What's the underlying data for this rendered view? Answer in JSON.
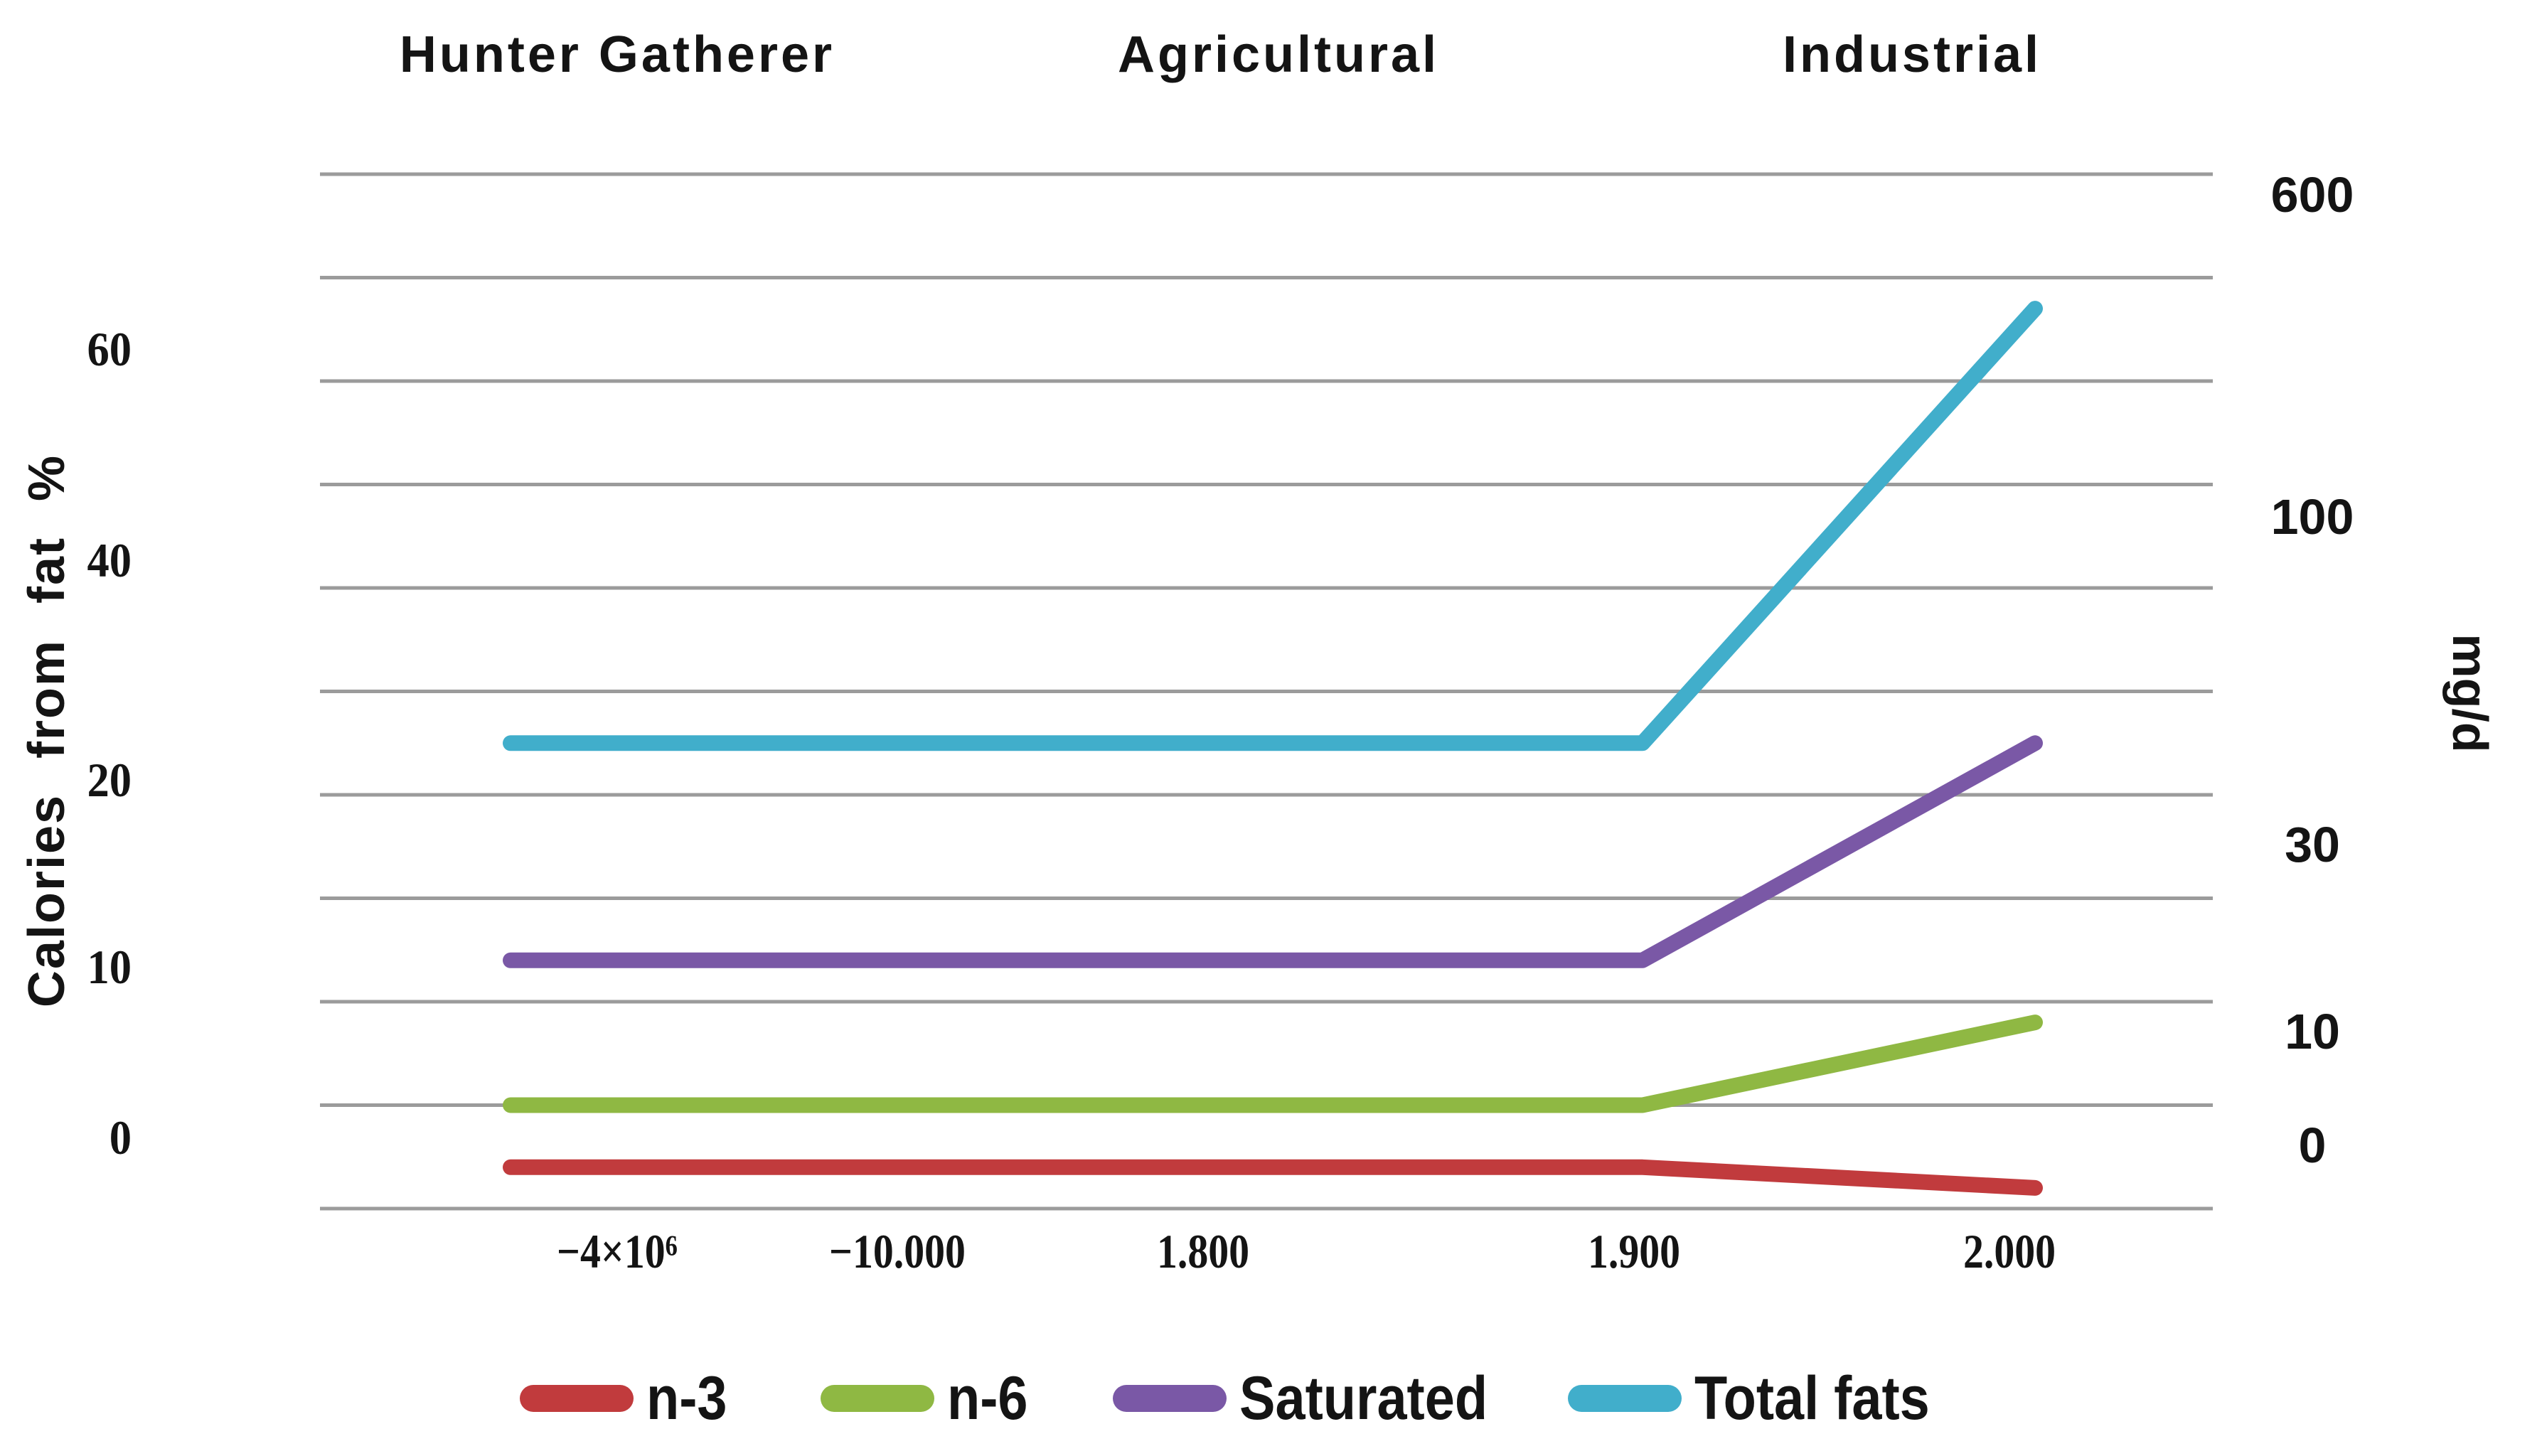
{
  "era_labels": [
    {
      "label": "Hunter Gatherer"
    },
    {
      "label": "Agricultural"
    },
    {
      "label": "Industrial"
    }
  ],
  "left_axis": {
    "title": "Calories from fat %",
    "ticks": [
      "60",
      "40",
      "20",
      "10",
      "0"
    ]
  },
  "right_axis": {
    "title": "mg/d",
    "ticks": [
      "600",
      "100",
      "30",
      "10",
      "0"
    ]
  },
  "x_axis": {
    "ticks": [
      "−4×10⁶",
      "−10.000",
      "1.800",
      "1.900",
      "2.000"
    ]
  },
  "chart_data": {
    "type": "line",
    "title": "",
    "era_bands": [
      "Hunter Gatherer",
      "Agricultural",
      "Industrial"
    ],
    "x_categories": [
      "−4×10⁶",
      "−10.000",
      "1.800",
      "1.900",
      "2.000"
    ],
    "left_axis": {
      "label": "Calories from fat %",
      "ticks": [
        0,
        10,
        20,
        40,
        60
      ]
    },
    "right_axis": {
      "label": "mg/d",
      "ticks": [
        0,
        10,
        30,
        100,
        600
      ]
    },
    "grid": true,
    "gridline_count": 11,
    "legend_position": "bottom",
    "series": [
      {
        "name": "n-3",
        "color": "#c13b3d",
        "values": [
          2,
          2,
          2,
          2,
          1
        ]
      },
      {
        "name": "n-6",
        "color": "#8fb843",
        "values": [
          5,
          5,
          5,
          5,
          9
        ]
      },
      {
        "name": "Saturated",
        "color": "#7a58a6",
        "values": [
          12,
          12,
          12,
          12,
          25
        ]
      },
      {
        "name": "Total fats",
        "color": "#41aecb",
        "values": [
          25,
          25,
          25,
          25,
          67
        ]
      }
    ],
    "colors": {
      "gridline": "#9b9b9b",
      "text": "#141414"
    }
  }
}
